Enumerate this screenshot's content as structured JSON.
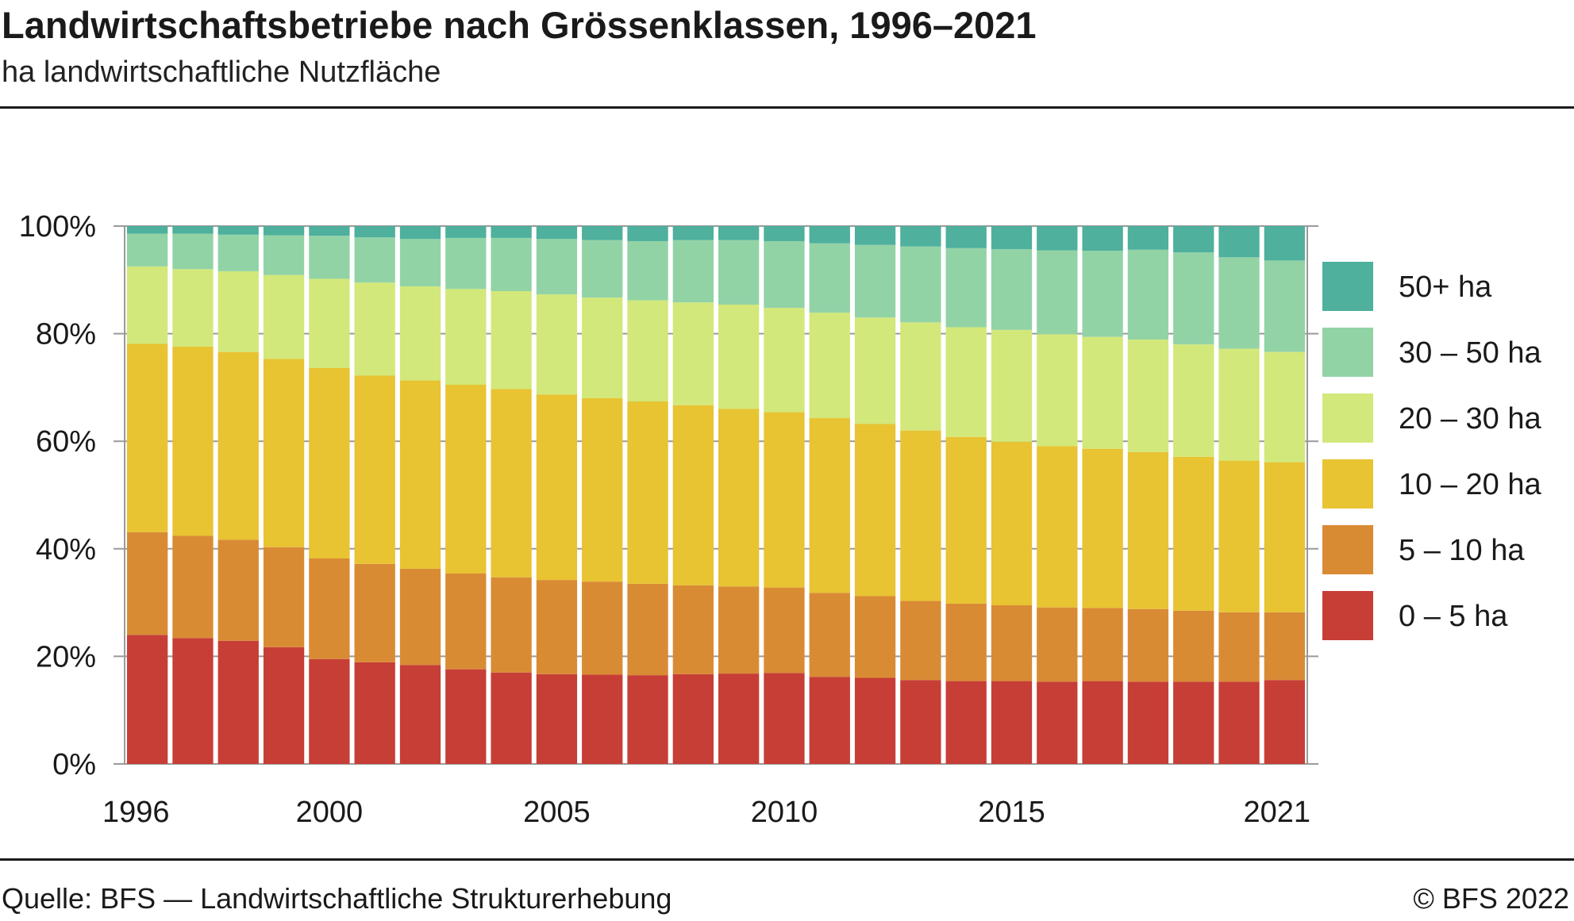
{
  "header": {
    "title": "Landwirtschaftsbetriebe nach Grössenklassen, 1996–2021",
    "subtitle": "ha landwirtschaftliche Nutzfläche"
  },
  "footer": {
    "source": "Quelle: BFS — Landwirtschaftliche Strukturerhebung",
    "copyright": "© BFS 2022"
  },
  "chart_data": {
    "type": "bar",
    "stacked": true,
    "title": "Landwirtschaftsbetriebe nach Grössenklassen, 1996–2021",
    "subtitle": "ha landwirtschaftliche Nutzfläche",
    "xlabel": "",
    "ylabel": "",
    "ylim": [
      0,
      100
    ],
    "yticks": [
      "0%",
      "20%",
      "40%",
      "60%",
      "80%",
      "100%"
    ],
    "xtick_labels": [
      "1996",
      "2000",
      "2005",
      "2010",
      "2015",
      "2021"
    ],
    "grid": true,
    "legend_position": "right",
    "categories": [
      "1996",
      "1997",
      "1998",
      "1999",
      "2000",
      "2001",
      "2002",
      "2003",
      "2004",
      "2005",
      "2006",
      "2007",
      "2008",
      "2009",
      "2010",
      "2011",
      "2012",
      "2013",
      "2014",
      "2015",
      "2016",
      "2017",
      "2018",
      "2019",
      "2020",
      "2021"
    ],
    "series": [
      {
        "name": "0 – 5 ha",
        "color": "#c73e36",
        "values": [
          24.0,
          23.4,
          22.9,
          21.7,
          19.5,
          18.9,
          18.4,
          17.6,
          17.0,
          16.7,
          16.6,
          16.5,
          16.7,
          16.8,
          16.9,
          16.2,
          16.0,
          15.6,
          15.4,
          15.4,
          15.3,
          15.4,
          15.3,
          15.3,
          15.3,
          15.6
        ]
      },
      {
        "name": "5 – 10 ha",
        "color": "#d98b34",
        "values": [
          19.1,
          19.0,
          18.8,
          18.6,
          18.7,
          18.3,
          17.9,
          17.8,
          17.7,
          17.5,
          17.3,
          17.0,
          16.5,
          16.2,
          15.9,
          15.6,
          15.2,
          14.7,
          14.4,
          14.1,
          13.8,
          13.6,
          13.5,
          13.2,
          12.9,
          12.6
        ]
      },
      {
        "name": "10 – 20 ha",
        "color": "#e8c332",
        "values": [
          35.0,
          35.2,
          34.9,
          35.0,
          35.4,
          35.0,
          35.0,
          35.1,
          35.0,
          34.5,
          34.1,
          33.9,
          33.5,
          33.0,
          32.6,
          32.5,
          32.0,
          31.7,
          31.0,
          30.4,
          30.0,
          29.6,
          29.2,
          28.6,
          28.2,
          27.9
        ]
      },
      {
        "name": "20 – 30 ha",
        "color": "#d2e87a",
        "values": [
          14.4,
          14.4,
          15.0,
          15.6,
          16.6,
          17.3,
          17.5,
          17.8,
          18.2,
          18.6,
          18.7,
          18.8,
          19.1,
          19.4,
          19.4,
          19.6,
          19.8,
          20.1,
          20.4,
          20.8,
          20.8,
          20.8,
          20.9,
          20.9,
          20.8,
          20.5
        ]
      },
      {
        "name": "30 – 50 ha",
        "color": "#92d3a6",
        "values": [
          6.1,
          6.6,
          6.8,
          7.4,
          8.0,
          8.4,
          8.8,
          9.5,
          9.9,
          10.3,
          10.7,
          11.0,
          11.6,
          12.0,
          12.4,
          12.9,
          13.5,
          14.1,
          14.7,
          15.0,
          15.6,
          16.0,
          16.7,
          17.1,
          17.0,
          17.0
        ]
      },
      {
        "name": "50+ ha",
        "color": "#4eb09d",
        "values": [
          1.4,
          1.4,
          1.6,
          1.7,
          1.8,
          2.1,
          2.4,
          2.2,
          2.2,
          2.4,
          2.6,
          2.8,
          2.6,
          2.6,
          2.8,
          3.2,
          3.5,
          3.8,
          4.1,
          4.3,
          4.5,
          4.6,
          4.4,
          4.9,
          5.8,
          6.4
        ]
      }
    ]
  }
}
